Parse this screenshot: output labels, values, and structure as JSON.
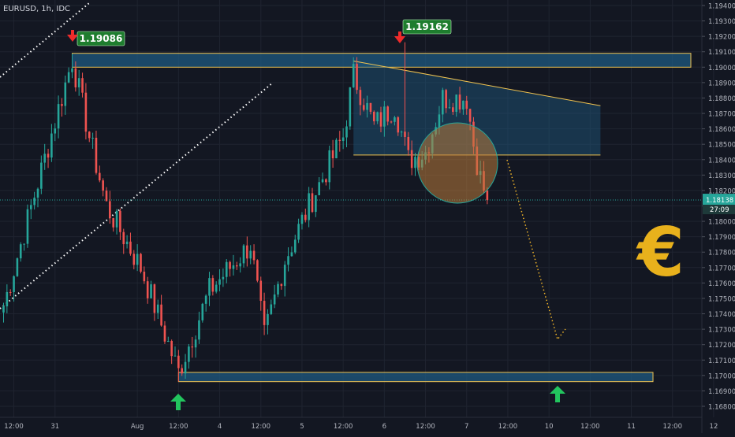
{
  "header": {
    "symbol_title": "EURUSD, 1h, IDC"
  },
  "colors": {
    "background": "#131722",
    "grid": "#1f2430",
    "axis_text": "#b2b5be",
    "up": "#26a69a",
    "down": "#ef5350",
    "zone_fill": "#1f5a80",
    "zone_stroke": "#f0c350",
    "euro": "#e8b11c",
    "arrow_green": "#22c55e",
    "arrow_red": "#ef2b2b",
    "label_green": "#1e7d2e",
    "price_line": "#26a69a",
    "circle_fill": "#b97a3a",
    "circle_stroke": "#26a69a",
    "dotted": "#ffffff",
    "projection": "#f0b429"
  },
  "icons": {
    "euro": "euro-icon",
    "up_arrow": "up-arrow-icon",
    "down_arrow": "down-arrow-icon"
  },
  "annotations": {
    "high_left": "1.19086",
    "high_right": "1.19162",
    "euro_symbol": "€"
  },
  "current_price": {
    "value": 1.18138,
    "label": "1.18138",
    "countdown": "27:09"
  },
  "chart_data": {
    "type": "candlestick",
    "title": "EURUSD, 1h, IDC",
    "ylim": [
      1.168,
      1.1945
    ],
    "y_ticks": [
      "1.19400",
      "1.19300",
      "1.19200",
      "1.19100",
      "1.19000",
      "1.18900",
      "1.18800",
      "1.18700",
      "1.18600",
      "1.18500",
      "1.18400",
      "1.18300",
      "1.18200",
      "1.18100",
      "1.18000",
      "1.17900",
      "1.17800",
      "1.17700",
      "1.17600",
      "1.17500",
      "1.17400",
      "1.17300",
      "1.17200",
      "1.17100",
      "1.17000",
      "1.16900",
      "1.16800"
    ],
    "x_range": [
      0,
      210
    ],
    "x_ticks": [
      {
        "label": "12:00",
        "x": 3
      },
      {
        "label": "31",
        "x": 15
      },
      {
        "label": "Aug",
        "x": 39
      },
      {
        "label": "12:00",
        "x": 51
      },
      {
        "label": "4",
        "x": 63
      },
      {
        "label": "12:00",
        "x": 75
      },
      {
        "label": "5",
        "x": 87
      },
      {
        "label": "12:00",
        "x": 99
      },
      {
        "label": "6",
        "x": 111
      },
      {
        "label": "12:00",
        "x": 123
      },
      {
        "label": "7",
        "x": 135
      },
      {
        "label": "12:00",
        "x": 147
      },
      {
        "label": "10",
        "x": 159
      },
      {
        "label": "12:00",
        "x": 171
      },
      {
        "label": "11",
        "x": 183
      },
      {
        "label": "12:00",
        "x": 195
      },
      {
        "label": "12",
        "x": 207
      }
    ],
    "grid": true,
    "price_levels": {
      "resistance_zone": [
        1.19,
        1.1909
      ],
      "support_zone": [
        1.1696,
        1.1702
      ],
      "triangle_top": [
        [
          102,
          1.1904
        ],
        [
          174,
          1.1875
        ]
      ],
      "triangle_bottom": 1.1843,
      "current": 1.18138
    },
    "anchor_points": [
      {
        "x": 0,
        "y": 1.1745
      },
      {
        "x": 20,
        "y": 1.1905
      },
      {
        "x": 25,
        "y": 1.1855
      },
      {
        "x": 30,
        "y": 1.181
      },
      {
        "x": 40,
        "y": 1.177
      },
      {
        "x": 51,
        "y": 1.1702
      },
      {
        "x": 60,
        "y": 1.1755
      },
      {
        "x": 72,
        "y": 1.1785
      },
      {
        "x": 76,
        "y": 1.1725
      },
      {
        "x": 82,
        "y": 1.1775
      },
      {
        "x": 90,
        "y": 1.1815
      },
      {
        "x": 99,
        "y": 1.1855
      },
      {
        "x": 102,
        "y": 1.1895
      },
      {
        "x": 108,
        "y": 1.1862
      },
      {
        "x": 114,
        "y": 1.1875
      },
      {
        "x": 118,
        "y": 1.184
      },
      {
        "x": 123,
        "y": 1.1845
      },
      {
        "x": 128,
        "y": 1.188
      },
      {
        "x": 135,
        "y": 1.188
      },
      {
        "x": 137,
        "y": 1.185
      },
      {
        "x": 139,
        "y": 1.1828
      },
      {
        "x": 141,
        "y": 1.18138
      }
    ],
    "spikes": [
      {
        "x": 20,
        "y": 1.19086
      },
      {
        "x": 117,
        "y": 1.19162
      },
      {
        "x": 51,
        "y": 1.1696
      }
    ]
  }
}
